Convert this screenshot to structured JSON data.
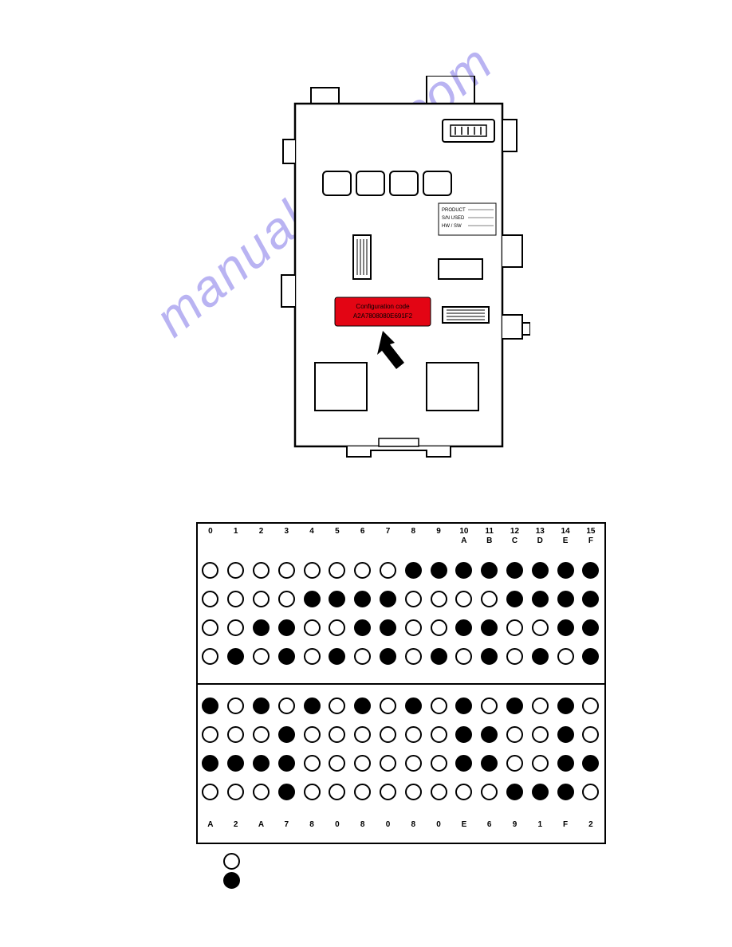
{
  "watermark": {
    "text": "manualshive.com",
    "color": "#b9b3f2"
  },
  "module": {
    "label_line1": "Configuration code",
    "label_line2": "A2A7808080E691F2",
    "label_bg": "#e30514",
    "label_text_color": "#000000",
    "small_text_1": "PRODUCT",
    "small_text_2": "S/N USED",
    "small_text_3": "HW / SW",
    "outline_color": "#000000"
  },
  "chart": {
    "columns": [
      "0",
      "1",
      "2",
      "3",
      "4",
      "5",
      "6",
      "7",
      "8",
      "9",
      "10",
      "11",
      "12",
      "13",
      "14",
      "15"
    ],
    "columns_alpha": [
      "",
      "",
      "",
      "",
      "",
      "",
      "",
      "",
      "",
      "",
      "A",
      "B",
      "C",
      "D",
      "E",
      "F"
    ],
    "footer": [
      "A",
      "2",
      "A",
      "7",
      "8",
      "0",
      "8",
      "0",
      "8",
      "0",
      "E",
      "6",
      "9",
      "1",
      "F",
      "2"
    ],
    "top_rows": [
      [
        0,
        0,
        0,
        0,
        0,
        0,
        0,
        0,
        1,
        1,
        1,
        1,
        1,
        1,
        1,
        1
      ],
      [
        0,
        0,
        0,
        0,
        1,
        1,
        1,
        1,
        0,
        0,
        0,
        0,
        1,
        1,
        1,
        1
      ],
      [
        0,
        0,
        1,
        1,
        0,
        0,
        1,
        1,
        0,
        0,
        1,
        1,
        0,
        0,
        1,
        1
      ],
      [
        0,
        1,
        0,
        1,
        0,
        1,
        0,
        1,
        0,
        1,
        0,
        1,
        0,
        1,
        0,
        1
      ]
    ],
    "bot_rows": [
      [
        1,
        0,
        1,
        0,
        1,
        0,
        1,
        0,
        1,
        0,
        1,
        0,
        1,
        0,
        1,
        0
      ],
      [
        0,
        0,
        0,
        1,
        0,
        0,
        0,
        0,
        0,
        0,
        1,
        1,
        0,
        0,
        1,
        0
      ],
      [
        1,
        1,
        1,
        1,
        0,
        0,
        0,
        0,
        0,
        0,
        1,
        1,
        0,
        0,
        1,
        1
      ],
      [
        0,
        0,
        0,
        1,
        0,
        0,
        0,
        0,
        0,
        0,
        0,
        0,
        1,
        1,
        1,
        0
      ]
    ],
    "dot_size": 17,
    "col_width": 31.8,
    "header_fontsize": 10
  }
}
